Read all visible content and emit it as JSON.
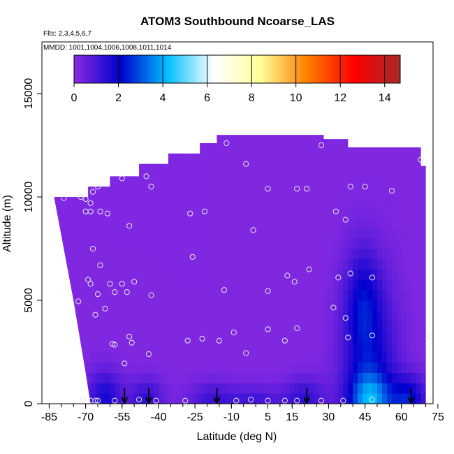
{
  "chart_data": {
    "type": "heatmap",
    "title": "ATOM3 Southbound Ncoarse_LAS",
    "flights_note": "Flts: 2,3,4,5,6,7",
    "dates_note": "MMDD: 1001,1004,1006,1008,1011,1014",
    "xlabel": "Latitude (deg N)",
    "ylabel": "Altitude (m)",
    "xlim": [
      -88,
      73
    ],
    "ylim": [
      0,
      17500
    ],
    "x_ticks": [
      -85,
      -70,
      -55,
      -40,
      -25,
      -10,
      5,
      15,
      30,
      45,
      60,
      75
    ],
    "x_tick_labels": [
      "-85",
      "-70",
      "-55",
      "-40",
      "-25",
      "-10",
      "5",
      "15",
      "30",
      "45",
      "60",
      "75"
    ],
    "y_ticks": [
      0,
      5000,
      10000,
      15000
    ],
    "y_tick_labels": [
      "0",
      "5000",
      "10000",
      "15000"
    ],
    "colorbar": {
      "range": [
        0,
        14.7
      ],
      "ticks": [
        0,
        2,
        4,
        6,
        8,
        10,
        12,
        14
      ],
      "tick_labels": [
        "0",
        "2",
        "4",
        "6",
        "8",
        "10",
        "12",
        "14"
      ],
      "colors": [
        "#8a2be2",
        "#0000cd",
        "#00bfff",
        "#ffffff",
        "#ffff99",
        "#ff7f00",
        "#ff0000",
        "#a52a2a"
      ]
    },
    "field_color": "#8a2be2",
    "curtain_top": [
      [
        -83,
        10000
      ],
      [
        -69,
        10000
      ],
      [
        -69,
        10500
      ],
      [
        -60,
        10500
      ],
      [
        -60,
        11000
      ],
      [
        -48,
        11000
      ],
      [
        -48,
        11600
      ],
      [
        -36,
        11600
      ],
      [
        -36,
        12100
      ],
      [
        -23,
        12100
      ],
      [
        -23,
        12600
      ],
      [
        -16,
        12600
      ],
      [
        -16,
        13000
      ],
      [
        28,
        13000
      ],
      [
        28,
        12800
      ],
      [
        38,
        12800
      ],
      [
        38,
        12400
      ],
      [
        68,
        12400
      ],
      [
        68,
        11500
      ],
      [
        70,
        11500
      ],
      [
        70,
        0
      ]
    ],
    "curtain_bottom_left": [
      [
        -68,
        0
      ],
      [
        -70,
        1500
      ],
      [
        -75,
        5000
      ],
      [
        -83,
        10000
      ]
    ],
    "enhancements": [
      {
        "lat": 47,
        "alt": 1500,
        "value": 1.8,
        "sx": 8,
        "sy": 3200
      },
      {
        "lat": 47,
        "alt": 200,
        "value": 2.4,
        "sx": 6,
        "sy": 900
      },
      {
        "lat": 44,
        "alt": 5000,
        "value": 1.3,
        "sx": 5,
        "sy": 1800
      },
      {
        "lat": 63,
        "alt": 200,
        "value": 2.0,
        "sx": 5,
        "sy": 800
      },
      {
        "lat": -62,
        "alt": 300,
        "value": 1.6,
        "sx": 5,
        "sy": 900
      },
      {
        "lat": -45,
        "alt": 250,
        "value": 1.2,
        "sx": 5,
        "sy": 700
      },
      {
        "lat": 20,
        "alt": 250,
        "value": 1.2,
        "sx": 6,
        "sy": 700
      },
      {
        "lat": -18,
        "alt": 200,
        "value": 1.0,
        "sx": 7,
        "sy": 600
      },
      {
        "lat": 0,
        "alt": 150,
        "value": 0.9,
        "sx": 8,
        "sy": 500
      }
    ],
    "samples": [
      [
        -84,
        9950
      ],
      [
        -79,
        9950
      ],
      [
        -72,
        10000
      ],
      [
        -70,
        9900
      ],
      [
        -68,
        9700
      ],
      [
        -67,
        10250
      ],
      [
        -65,
        10500
      ],
      [
        -70,
        9300
      ],
      [
        -68,
        9300
      ],
      [
        -64,
        9300
      ],
      [
        -61,
        9200
      ],
      [
        -55,
        10900
      ],
      [
        -45,
        11000
      ],
      [
        -43,
        10500
      ],
      [
        -52,
        8600
      ],
      [
        -27,
        9200
      ],
      [
        -21,
        9300
      ],
      [
        -12,
        12600
      ],
      [
        -4,
        11600
      ],
      [
        5,
        10400
      ],
      [
        17,
        10400
      ],
      [
        21,
        10400
      ],
      [
        27,
        12500
      ],
      [
        33,
        9300
      ],
      [
        37,
        8900
      ],
      [
        39,
        10500
      ],
      [
        45,
        10500
      ],
      [
        56,
        10300
      ],
      [
        68,
        11800
      ],
      [
        -1,
        8400
      ],
      [
        -67,
        7500
      ],
      [
        -64,
        6700
      ],
      [
        -69,
        6000
      ],
      [
        -68,
        5800
      ],
      [
        -60,
        5800
      ],
      [
        -55,
        5800
      ],
      [
        -50,
        5900
      ],
      [
        -58,
        5400
      ],
      [
        -53,
        5400
      ],
      [
        -65,
        5300
      ],
      [
        -73,
        4950
      ],
      [
        -62,
        4600
      ],
      [
        -66,
        4300
      ],
      [
        -43,
        5250
      ],
      [
        -26,
        7100
      ],
      [
        -13,
        5500
      ],
      [
        13,
        6200
      ],
      [
        16,
        5900
      ],
      [
        22,
        6500
      ],
      [
        34,
        6100
      ],
      [
        39,
        6300
      ],
      [
        48,
        6100
      ],
      [
        5,
        5450
      ],
      [
        32,
        4650
      ],
      [
        37,
        4150
      ],
      [
        5,
        3600
      ],
      [
        17,
        3650
      ],
      [
        -9,
        3450
      ],
      [
        -4,
        2450
      ],
      [
        12,
        3050
      ],
      [
        38,
        3200
      ],
      [
        48,
        3300
      ],
      [
        72,
        3250
      ],
      [
        -28,
        3050
      ],
      [
        -22,
        3150
      ],
      [
        -15,
        3050
      ],
      [
        -52,
        3250
      ],
      [
        -51,
        2950
      ],
      [
        -44,
        2400
      ],
      [
        -58,
        2850
      ],
      [
        -59,
        2900
      ],
      [
        -54,
        1950
      ],
      [
        -71,
        200
      ],
      [
        -68,
        150
      ],
      [
        -66,
        150
      ],
      [
        -65,
        150
      ],
      [
        -58,
        150
      ],
      [
        -48,
        200
      ],
      [
        -41,
        150
      ],
      [
        -29,
        150
      ],
      [
        -8,
        150
      ],
      [
        -2,
        200
      ],
      [
        5,
        150
      ],
      [
        12,
        150
      ],
      [
        17,
        150
      ],
      [
        27,
        150
      ],
      [
        36,
        150
      ],
      [
        48,
        200
      ],
      [
        72,
        150
      ]
    ],
    "arrows": [
      -54,
      -44,
      -16,
      21,
      64
    ]
  }
}
